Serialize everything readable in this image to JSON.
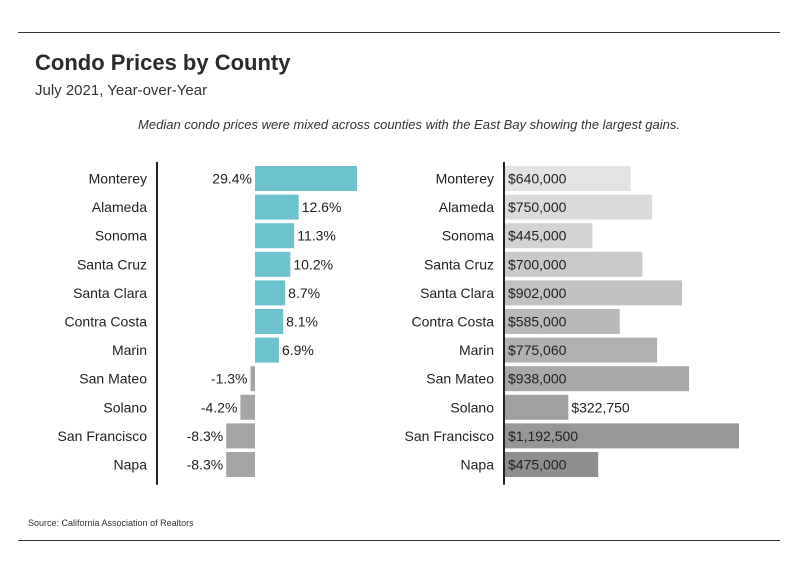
{
  "header": {
    "title": "Condo Prices by County",
    "subtitle": "July 2021, Year-over-Year",
    "note": "Median condo prices were mixed across counties with the East Bay showing the largest gains.",
    "source": "Source:  California Association of Realtors"
  },
  "colors": {
    "positive": "#6cc3cf",
    "negative": "#a5a5a5",
    "price_light": "#e3e3e3",
    "price_dark": "#8f8f8f",
    "axis": "#222222"
  },
  "chart_data": [
    {
      "type": "bar",
      "orientation": "horizontal",
      "categories": [
        "Monterey",
        "Alameda",
        "Sonoma",
        "Santa Cruz",
        "Santa Clara",
        "Contra Costa",
        "Marin",
        "San Mateo",
        "Solano",
        "San Francisco",
        "Napa"
      ],
      "values": [
        29.4,
        12.6,
        11.3,
        10.2,
        8.7,
        8.1,
        6.9,
        -1.3,
        -4.2,
        -8.3,
        -8.3
      ],
      "labels": [
        "29.4%",
        "12.6%",
        "11.3%",
        "10.2%",
        "8.7%",
        "8.1%",
        "6.9%",
        "-1.3%",
        "-4.2%",
        "-8.3%",
        "-8.3%"
      ],
      "xlim": [
        -30,
        30
      ],
      "grid": false
    },
    {
      "type": "bar",
      "orientation": "horizontal",
      "categories": [
        "Monterey",
        "Alameda",
        "Sonoma",
        "Santa Cruz",
        "Santa Clara",
        "Contra Costa",
        "Marin",
        "San Mateo",
        "Solano",
        "San Francisco",
        "Napa"
      ],
      "values": [
        640000,
        750000,
        445000,
        700000,
        902000,
        585000,
        775060,
        938000,
        322750,
        1192500,
        475000
      ],
      "labels": [
        "$640,000",
        "$750,000",
        "$445,000",
        "$700,000",
        "$902,000",
        "$585,000",
        "$775,060",
        "$938,000",
        "$322,750",
        "$1,192,500",
        "$475,000"
      ],
      "xlim": [
        0,
        1192500
      ],
      "grid": false
    }
  ]
}
